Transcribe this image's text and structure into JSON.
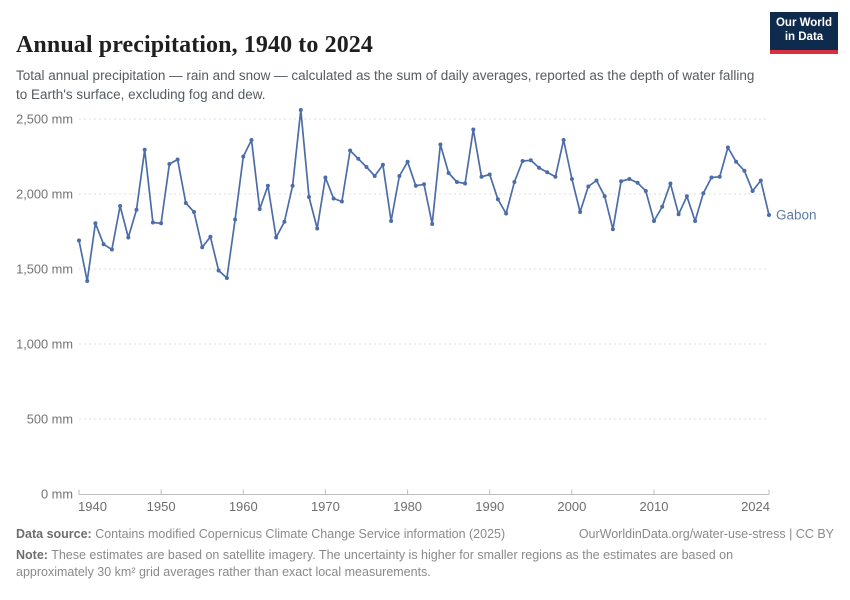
{
  "header": {
    "title": "Annual precipitation, 1940 to 2024",
    "subtitle": "Total annual precipitation — rain and snow — calculated as the sum of daily averages, reported as the depth of water falling to Earth's surface, excluding fog and dew.",
    "logo": {
      "line1": "Our World",
      "line2": "in Data"
    }
  },
  "chart_data": {
    "type": "line",
    "title": "Annual precipitation, 1940 to 2024",
    "entity_label": "Gabon",
    "line_color": "#4c6da8",
    "entity_label_color": "#5e7ca7",
    "grid": "dashed-horizontal",
    "xlim": [
      1940,
      2024
    ],
    "ylim": [
      0,
      2700
    ],
    "x_ticks": [
      1940,
      1950,
      1960,
      1970,
      1980,
      1990,
      2000,
      2010,
      2024
    ],
    "y_ticks": [
      0,
      500,
      1000,
      1500,
      2000,
      2500
    ],
    "y_tick_labels": [
      "0 mm",
      "500 mm",
      "1,000 mm",
      "1,500 mm",
      "2,000 mm",
      "2,500 mm"
    ],
    "x": [
      1940,
      1941,
      1942,
      1943,
      1944,
      1945,
      1946,
      1947,
      1948,
      1949,
      1950,
      1951,
      1952,
      1953,
      1954,
      1955,
      1956,
      1957,
      1958,
      1959,
      1960,
      1961,
      1962,
      1963,
      1964,
      1965,
      1966,
      1967,
      1968,
      1969,
      1970,
      1971,
      1972,
      1973,
      1974,
      1975,
      1976,
      1977,
      1978,
      1979,
      1980,
      1981,
      1982,
      1983,
      1984,
      1985,
      1986,
      1987,
      1988,
      1989,
      1990,
      1991,
      1992,
      1993,
      1994,
      1995,
      1996,
      1997,
      1998,
      1999,
      2000,
      2001,
      2002,
      2003,
      2004,
      2005,
      2006,
      2007,
      2008,
      2009,
      2010,
      2011,
      2012,
      2013,
      2014,
      2015,
      2016,
      2017,
      2018,
      2019,
      2020,
      2021,
      2022,
      2023,
      2024
    ],
    "series": [
      {
        "name": "Gabon",
        "values": [
          1690,
          1420,
          1805,
          1665,
          1630,
          1920,
          1710,
          1895,
          2295,
          1810,
          1805,
          2200,
          2230,
          1940,
          1880,
          1645,
          1715,
          1490,
          1440,
          1830,
          2250,
          2360,
          1900,
          2055,
          1710,
          1815,
          2055,
          2560,
          1980,
          1770,
          2110,
          1970,
          1950,
          2290,
          2235,
          2180,
          2120,
          2195,
          1820,
          2120,
          2215,
          2055,
          2065,
          1800,
          2330,
          2140,
          2080,
          2070,
          2430,
          2115,
          2130,
          1965,
          1870,
          2080,
          2220,
          2225,
          2175,
          2145,
          2115,
          2360,
          2100,
          1880,
          2050,
          2090,
          1985,
          1765,
          2085,
          2100,
          2075,
          2020,
          1820,
          1915,
          2070,
          1865,
          1985,
          1820,
          2005,
          2110,
          2115,
          2310,
          2215,
          2155,
          2020,
          2090,
          1860
        ]
      }
    ]
  },
  "footer": {
    "datasource_label": "Data source:",
    "datasource_text": " Contains modified Copernicus Climate Change Service information (2025)",
    "link_text": "OurWorldinData.org/water-use-stress | CC BY",
    "note_label": "Note:",
    "note_text": " These estimates are based on satellite imagery. The uncertainty is higher for smaller regions as the estimates are based on approximately 30 km² grid averages rather than exact local measurements."
  }
}
